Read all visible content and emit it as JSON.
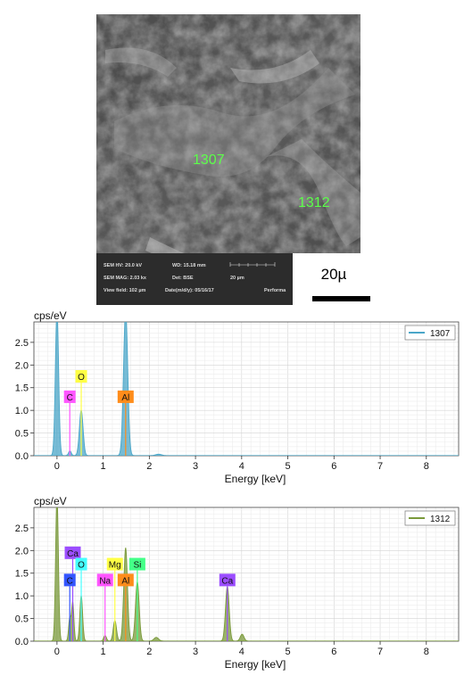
{
  "sem_image": {
    "markers": [
      {
        "label": "1307",
        "color": "#5cff4a"
      },
      {
        "label": "1312",
        "color": "#5cff4a"
      }
    ],
    "info_bar": [
      [
        "SEM HV: 20.0 kV",
        "WD: 15.18 mm",
        ""
      ],
      [
        "SEM MAG: 2.03 kx",
        "Det: BSE",
        "20 µm"
      ],
      [
        "View field: 102 µm",
        "Date(m/d/y): 05/16/17",
        "Performa"
      ]
    ],
    "scale_bar_label": "20µ"
  },
  "chart_data": [
    {
      "type": "line",
      "ylabel": "cps/eV",
      "xlabel": "Energy [keV]",
      "xlim": [
        -0.5,
        8.7
      ],
      "ylim": [
        0,
        2.95
      ],
      "xticks": [
        0,
        1,
        2,
        3,
        4,
        5,
        6,
        7,
        8
      ],
      "yticks": [
        0.0,
        0.5,
        1.0,
        1.5,
        2.0,
        2.5
      ],
      "ytick_labels": [
        "0.0",
        "0.5",
        "1.0",
        "1.5",
        "2.0",
        "2.5"
      ],
      "grid": true,
      "legend": "top-right",
      "series": [
        {
          "name": "1307",
          "color": "#4aa6c8"
        }
      ],
      "peaks": [
        {
          "energy": 0.0,
          "height": 3.2,
          "width": 0.035
        },
        {
          "energy": 0.28,
          "height": 0.1,
          "width": 0.03
        },
        {
          "energy": 0.525,
          "height": 1.0,
          "width": 0.04
        },
        {
          "energy": 1.487,
          "height": 3.2,
          "width": 0.045
        },
        {
          "energy": 2.2,
          "height": 0.03,
          "width": 0.06
        }
      ],
      "element_labels": [
        {
          "element": "C",
          "energy": 0.277,
          "level": 1.3,
          "color": "#ff55ff"
        },
        {
          "element": "O",
          "energy": 0.525,
          "level": 1.75,
          "color": "#ffff44"
        },
        {
          "element": "Al",
          "energy": 1.487,
          "level": 1.3,
          "color": "#ff8c1a"
        }
      ]
    },
    {
      "type": "line",
      "ylabel": "cps/eV",
      "xlabel": "Energy [keV]",
      "xlim": [
        -0.5,
        8.7
      ],
      "ylim": [
        0,
        2.95
      ],
      "xticks": [
        0,
        1,
        2,
        3,
        4,
        5,
        6,
        7,
        8
      ],
      "yticks": [
        0.0,
        0.5,
        1.0,
        1.5,
        2.0,
        2.5
      ],
      "ytick_labels": [
        "0.0",
        "0.5",
        "1.0",
        "1.5",
        "2.0",
        "2.5"
      ],
      "grid": true,
      "legend": "top-right",
      "series": [
        {
          "name": "1312",
          "color": "#7a9a3a"
        }
      ],
      "peaks": [
        {
          "energy": 0.0,
          "height": 3.2,
          "width": 0.03
        },
        {
          "energy": 0.277,
          "height": 0.5,
          "width": 0.025
        },
        {
          "energy": 0.341,
          "height": 0.85,
          "width": 0.025
        },
        {
          "energy": 0.525,
          "height": 1.0,
          "width": 0.03
        },
        {
          "energy": 1.041,
          "height": 0.12,
          "width": 0.03
        },
        {
          "energy": 1.254,
          "height": 0.45,
          "width": 0.035
        },
        {
          "energy": 1.487,
          "height": 2.05,
          "width": 0.04
        },
        {
          "energy": 1.74,
          "height": 1.3,
          "width": 0.04
        },
        {
          "energy": 2.15,
          "height": 0.08,
          "width": 0.05
        },
        {
          "energy": 3.69,
          "height": 1.2,
          "width": 0.04
        },
        {
          "energy": 4.01,
          "height": 0.15,
          "width": 0.04
        }
      ],
      "element_labels": [
        {
          "element": "Ca",
          "energy": 0.341,
          "level": 1.95,
          "color": "#9b4dff"
        },
        {
          "element": "O",
          "energy": 0.525,
          "level": 1.7,
          "color": "#44ffff"
        },
        {
          "element": "C",
          "energy": 0.277,
          "level": 1.35,
          "color": "#3355ff"
        },
        {
          "element": "Na",
          "energy": 1.041,
          "level": 1.35,
          "color": "#ff55ff"
        },
        {
          "element": "Mg",
          "energy": 1.254,
          "level": 1.7,
          "color": "#ffff44"
        },
        {
          "element": "Al",
          "energy": 1.487,
          "level": 1.35,
          "color": "#ff8c1a"
        },
        {
          "element": "Si",
          "energy": 1.74,
          "level": 1.7,
          "color": "#44ff88"
        },
        {
          "element": "Ca",
          "energy": 3.69,
          "level": 1.35,
          "color": "#9b4dff"
        }
      ]
    }
  ]
}
